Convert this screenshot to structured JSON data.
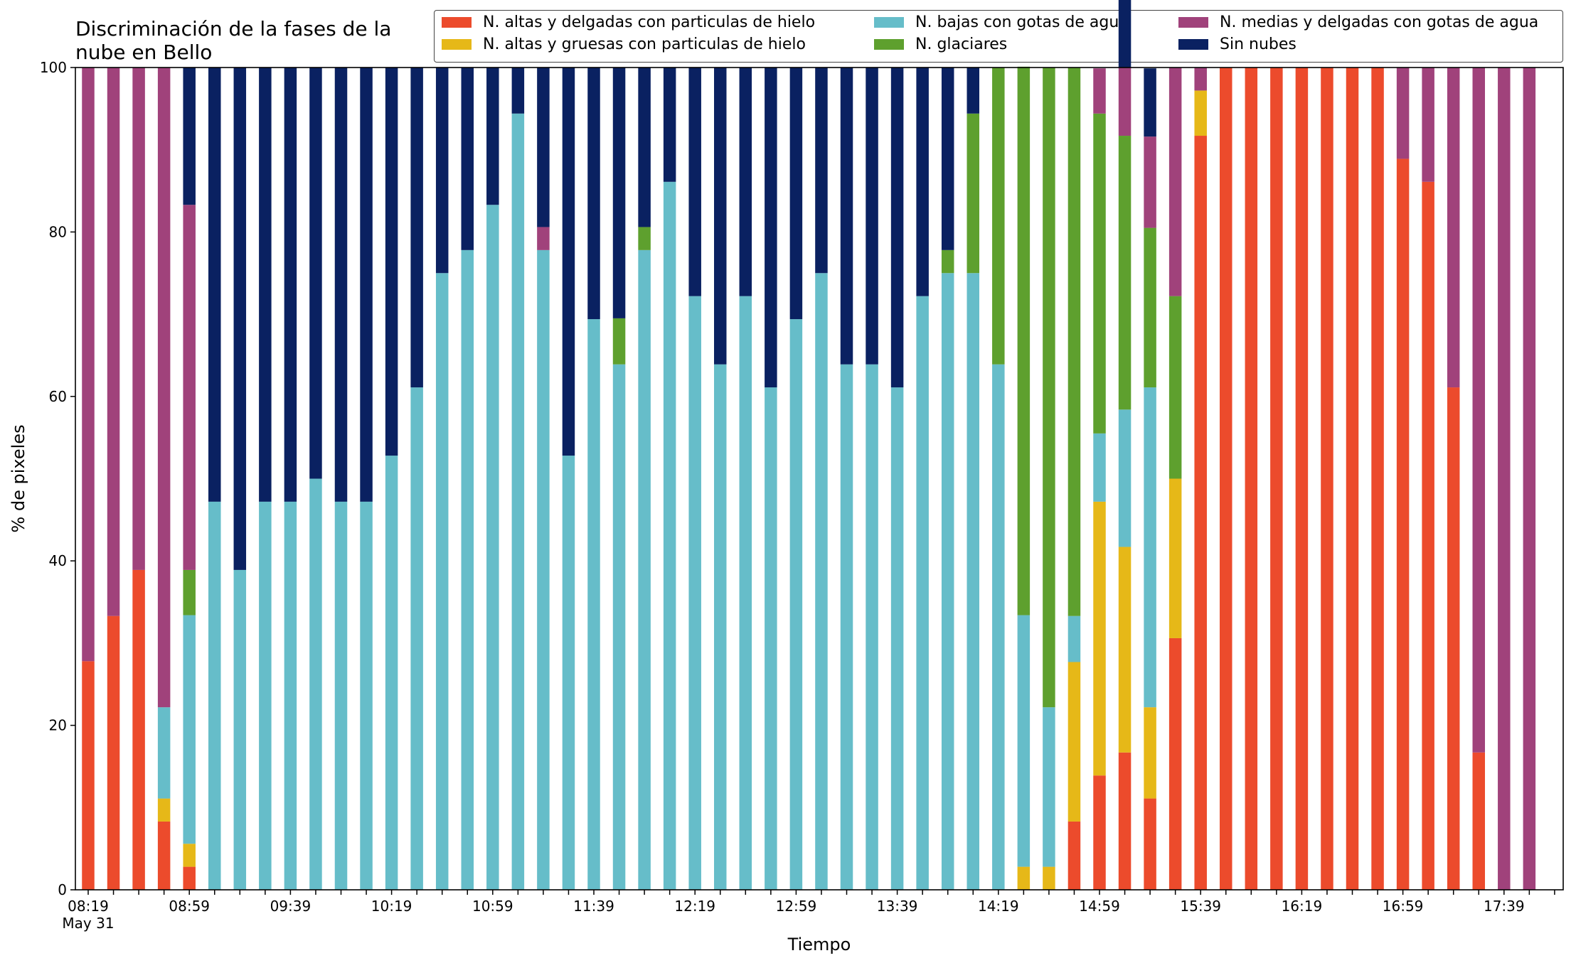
{
  "chart_data": {
    "type": "bar",
    "stacked": true,
    "title": "Discriminación de la fases de la\nnube en Bello",
    "xlabel": "Tiempo",
    "ylabel": "% de pixeles",
    "ylim": [
      0,
      100
    ],
    "yticks": [
      0,
      20,
      40,
      60,
      80,
      100
    ],
    "grid": false,
    "legend_position": "top-right",
    "x_tick_labels": [
      "08:19",
      "08:59",
      "09:39",
      "10:19",
      "10:59",
      "11:39",
      "12:19",
      "12:59",
      "13:39",
      "14:19",
      "14:59",
      "15:39",
      "16:19",
      "16:59",
      "17:39"
    ],
    "x_date_label": "May 31",
    "categories": [
      "08:19",
      "08:29",
      "08:39",
      "08:49",
      "08:59",
      "09:09",
      "09:19",
      "09:29",
      "09:39",
      "09:49",
      "09:59",
      "10:09",
      "10:19",
      "10:29",
      "10:39",
      "10:49",
      "10:59",
      "11:09",
      "11:19",
      "11:29",
      "11:39",
      "11:49",
      "11:59",
      "12:09",
      "12:19",
      "12:29",
      "12:39",
      "12:49",
      "12:59",
      "13:09",
      "13:19",
      "13:29",
      "13:39",
      "13:49",
      "13:59",
      "14:09",
      "14:19",
      "14:29",
      "14:39",
      "14:49",
      "14:59",
      "15:09",
      "15:19",
      "15:29",
      "15:39",
      "15:49",
      "15:59",
      "16:09",
      "16:19",
      "16:29",
      "16:39",
      "16:49",
      "16:59",
      "17:09",
      "17:19",
      "17:29",
      "17:39",
      "17:49"
    ],
    "series": [
      {
        "name": "N. altas y delgadas con particulas de hielo",
        "color": "#EC4B2C",
        "values": [
          27.8,
          33.3,
          38.9,
          8.3,
          2.8,
          0,
          0,
          0,
          0,
          0,
          0,
          0,
          0,
          0,
          0,
          0,
          0,
          0,
          0,
          0,
          0,
          0,
          0,
          0,
          0,
          0,
          0,
          0,
          0,
          0,
          0,
          0,
          0,
          0,
          0,
          0,
          0,
          0,
          0,
          8.3,
          13.9,
          16.7,
          11.1,
          30.6,
          91.7,
          100,
          100,
          100,
          100,
          100,
          100,
          100,
          88.9,
          86.1,
          61.1,
          16.7,
          0,
          0
        ]
      },
      {
        "name": "N. altas y gruesas con particulas de hielo",
        "color": "#E6B818",
        "values": [
          0,
          0,
          0,
          2.8,
          2.8,
          0,
          0,
          0,
          0,
          0,
          0,
          0,
          0,
          0,
          0,
          0,
          0,
          0,
          0,
          0,
          0,
          0,
          0,
          0,
          0,
          0,
          0,
          0,
          0,
          0,
          0,
          0,
          0,
          0,
          0,
          0,
          0,
          2.8,
          2.8,
          19.4,
          33.3,
          25.0,
          11.1,
          19.4,
          5.5,
          0,
          0,
          0,
          0,
          0,
          0,
          0,
          0,
          0,
          0,
          0,
          0,
          0
        ]
      },
      {
        "name": "N. bajas con gotas de agua",
        "color": "#66BDC9",
        "values": [
          0,
          0,
          0,
          11.1,
          27.8,
          47.2,
          38.9,
          47.2,
          47.2,
          50.0,
          47.2,
          47.2,
          52.8,
          61.1,
          75.0,
          77.8,
          83.3,
          94.4,
          77.8,
          52.8,
          69.4,
          63.9,
          77.8,
          86.1,
          72.2,
          63.9,
          72.2,
          61.1,
          69.4,
          75.0,
          63.9,
          63.9,
          61.1,
          72.2,
          75.0,
          75.0,
          63.9,
          30.6,
          19.4,
          5.6,
          8.3,
          16.7,
          38.9,
          0,
          0,
          0,
          0,
          0,
          0,
          0,
          0,
          0,
          0,
          0,
          0,
          0,
          0,
          0
        ]
      },
      {
        "name": "N. glaciares",
        "color": "#5EA02E",
        "values": [
          0,
          0,
          0,
          0,
          5.5,
          0,
          0,
          0,
          0,
          0,
          0,
          0,
          0,
          0,
          0,
          0,
          0,
          0,
          0,
          0,
          0,
          5.6,
          2.8,
          0,
          0,
          0,
          0,
          0,
          0,
          0,
          0,
          0,
          0,
          0,
          2.8,
          19.4,
          36.1,
          66.7,
          77.8,
          66.7,
          38.9,
          33.3,
          19.4,
          22.2,
          0,
          0,
          0,
          0,
          0,
          0,
          0,
          0,
          0,
          0,
          0,
          0,
          0,
          0
        ]
      },
      {
        "name": "N. medias y delgadas con gotas de agua",
        "color": "#A0427B",
        "values": [
          72.2,
          66.7,
          61.1,
          77.8,
          44.4,
          0,
          0,
          0,
          0,
          0,
          0,
          0,
          0,
          0,
          0,
          0,
          0,
          0,
          2.8,
          0,
          0,
          0,
          0,
          0,
          0,
          0,
          0,
          0,
          0,
          0,
          0,
          0,
          0,
          0,
          0,
          0,
          0,
          0,
          0,
          0,
          5.5,
          8.3,
          11.1,
          27.8,
          2.8,
          0,
          0,
          0,
          0,
          0,
          0,
          0,
          11.1,
          13.9,
          38.9,
          83.3,
          100,
          100
        ]
      },
      {
        "name": "Sin nubes",
        "color": "#0A2161",
        "values": [
          0,
          0,
          0,
          0,
          16.7,
          52.8,
          61.1,
          52.8,
          52.8,
          50.0,
          52.8,
          52.8,
          47.2,
          38.9,
          25.0,
          22.2,
          16.7,
          5.6,
          19.4,
          47.2,
          30.6,
          30.5,
          19.4,
          13.9,
          27.8,
          36.1,
          27.8,
          38.9,
          30.6,
          25.0,
          36.1,
          36.1,
          38.9,
          27.8,
          22.2,
          5.6,
          0,
          0,
          0,
          0,
          0,
          8.3,
          8.3,
          0,
          0,
          0,
          0,
          0,
          0,
          0,
          0,
          0,
          0,
          0,
          0,
          0,
          0,
          0
        ]
      }
    ]
  }
}
